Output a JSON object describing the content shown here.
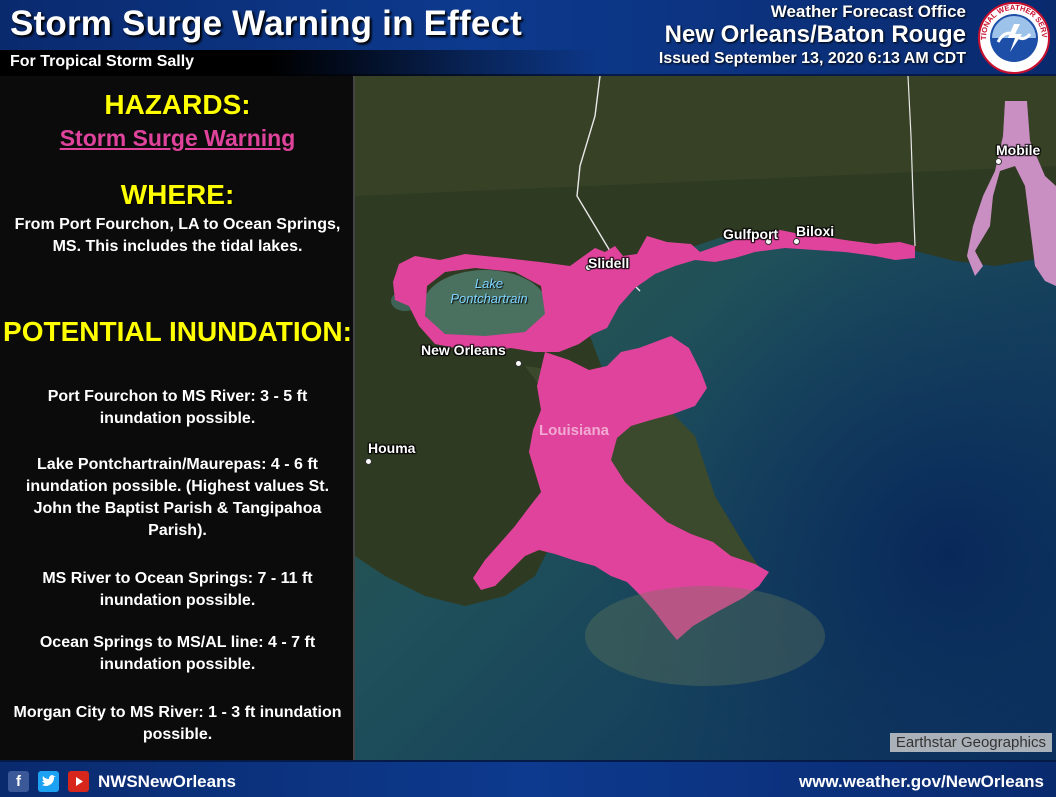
{
  "header": {
    "title": "Storm Surge Warning in Effect",
    "subtitle": "For Tropical Storm Sally",
    "office_line1": "Weather Forecast Office",
    "office_line2": "New Orleans/Baton Rouge",
    "issued": "Issued September 13, 2020 6:13 AM CDT",
    "logo_text": "NATIONAL WEATHER SERVICE"
  },
  "panel": {
    "hazards_label": "HAZARDS:",
    "hazard_value": "Storm Surge Warning",
    "where_label": "WHERE:",
    "where_text": "From Port Fourchon, LA to Ocean Springs, MS. This includes the tidal lakes.",
    "inundation_label": "POTENTIAL INUNDATION:",
    "inundation_items": [
      "Port Fourchon to MS River: 3 - 5 ft inundation possible.",
      "Lake Pontchartrain/Maurepas: 4 - 6 ft inundation possible. (Highest values St. John the Baptist Parish & Tangipahoa Parish).",
      "MS River to Ocean Springs: 7 - 11 ft inundation possible.",
      "Ocean Springs to MS/AL line: 4 - 7 ft inundation possible.",
      "Morgan City to MS River: 1 - 3 ft inundation possible."
    ]
  },
  "map": {
    "cities": {
      "mobile": "Mobile",
      "gulfport": "Gulfport",
      "biloxi": "Biloxi",
      "slidell": "Slidell",
      "new_orleans": "New Orleans",
      "houma": "Houma"
    },
    "water_label": "Lake Pontchartrain",
    "state_label": "Louisiana",
    "attribution": "Earthstar Geographics",
    "colors": {
      "warning": "#e0439c",
      "watch": "#c98fc2",
      "land": "#2f3a22",
      "water": "#0d3560"
    }
  },
  "footer": {
    "handle": "NWSNewOrleans",
    "website": "www.weather.gov/NewOrleans",
    "icons": [
      "facebook-icon",
      "twitter-icon",
      "youtube-icon"
    ]
  }
}
